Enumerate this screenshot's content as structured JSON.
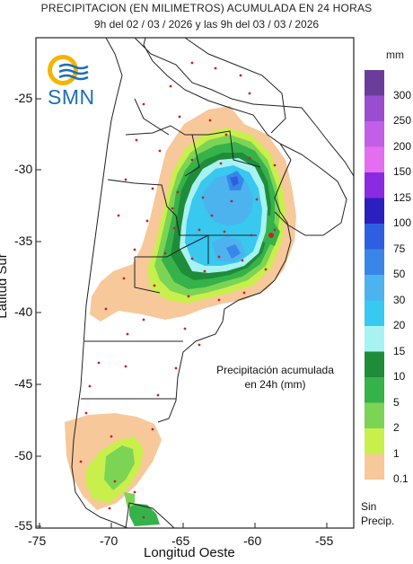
{
  "title_line1": "PRECIPITACION (EN MILIMETROS) ACUMULADA EN 24 HORAS",
  "title_line2": "9h del 02 / 03 / 2026  y las 9h del 03 / 03 / 2026",
  "axes": {
    "xlabel": "Longitud Oeste",
    "ylabel": "Latitud Sur",
    "xticks": [
      "-75",
      "-70",
      "-65",
      "-60",
      "-55"
    ],
    "yticks": [
      "-25",
      "-30",
      "-35",
      "-40",
      "-45",
      "-50",
      "-55"
    ]
  },
  "annotation": [
    "Precipitación acumulada",
    "en 24h (mm)"
  ],
  "logo_text": "SMN",
  "legend": {
    "unit": "mm",
    "items": [
      {
        "label": "300",
        "color": "#6a3d9a"
      },
      {
        "label": "250",
        "color": "#9a4dcf"
      },
      {
        "label": "200",
        "color": "#c160e6"
      },
      {
        "label": "150",
        "color": "#e36ef0"
      },
      {
        "label": "125",
        "color": "#8a2be2"
      },
      {
        "label": "100",
        "color": "#2c1fbf"
      },
      {
        "label": "75",
        "color": "#2e5fe0"
      },
      {
        "label": "50",
        "color": "#3a86e8"
      },
      {
        "label": "30",
        "color": "#4cb3ee"
      },
      {
        "label": "20",
        "color": "#38c8f0"
      },
      {
        "label": "15",
        "color": "#a8f2f2"
      },
      {
        "label": "10",
        "color": "#1f8c3a"
      },
      {
        "label": "5",
        "color": "#36b24a"
      },
      {
        "label": "2",
        "color": "#7cd455"
      },
      {
        "label": "1",
        "color": "#c9ef4d"
      },
      {
        "label": "0.1",
        "color": "#f7c89a"
      }
    ],
    "nodata": [
      "Sin",
      "Precip."
    ]
  }
}
